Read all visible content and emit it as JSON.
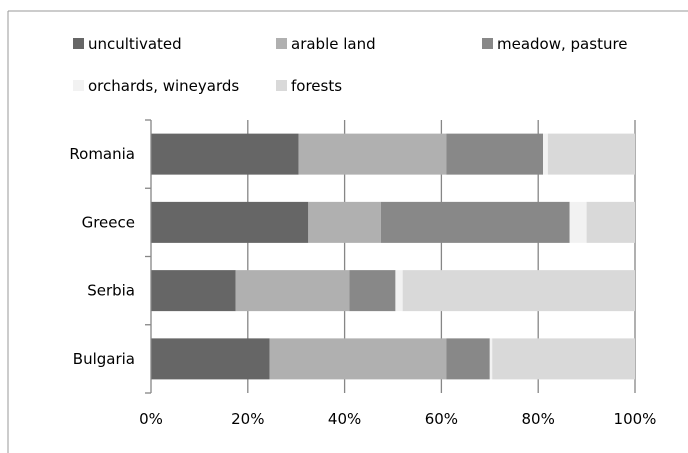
{
  "chart_data": {
    "type": "bar",
    "orientation": "horizontal",
    "stacked": "percent",
    "categories": [
      "Romania",
      "Greece",
      "Serbia",
      "Bulgaria"
    ],
    "series": [
      {
        "name": "uncultivated",
        "color": "#666666",
        "values": [
          30.5,
          32.5,
          17.5,
          24.5
        ]
      },
      {
        "name": "arable land",
        "color": "#b0b0b0",
        "values": [
          30.5,
          15.0,
          23.5,
          36.5
        ]
      },
      {
        "name": "meadow, pasture",
        "color": "#888888",
        "values": [
          20.0,
          39.0,
          9.5,
          9.0
        ]
      },
      {
        "name": "orchards, wineyards",
        "color": "#f2f2f2",
        "values": [
          1.0,
          3.5,
          1.5,
          0.5
        ]
      },
      {
        "name": "forests",
        "color": "#d9d9d9",
        "values": [
          18.0,
          10.0,
          48.0,
          29.5
        ]
      }
    ],
    "xlim": [
      0,
      100
    ],
    "x_ticks": [
      "0%",
      "20%",
      "40%",
      "60%",
      "80%",
      "100%"
    ],
    "grid": true,
    "legend_position": "top"
  }
}
